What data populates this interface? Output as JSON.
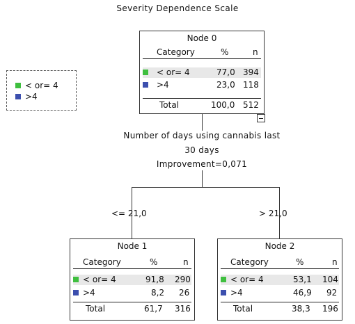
{
  "title": "Severity Dependence Scale",
  "legend": [
    {
      "label": "< or= 4",
      "color": "#3fbf3f"
    },
    {
      "label": ">4",
      "color": "#3c4fae"
    }
  ],
  "headers": {
    "category": "Category",
    "percent": "%",
    "n": "n"
  },
  "root": {
    "title": "Node 0",
    "rows": [
      {
        "category": "< or= 4",
        "percent": "77,0",
        "n": "394"
      },
      {
        "category": ">4",
        "percent": "23,0",
        "n": "118"
      }
    ],
    "total": {
      "label": "Total",
      "percent": "100,0",
      "n": "512"
    }
  },
  "split": {
    "variable_line1": "Number of days using cannabis last",
    "variable_line2": "30 days",
    "improvement": "Improvement=0,071"
  },
  "branches": {
    "left": "<= 21,0",
    "right": "> 21,0"
  },
  "node1": {
    "title": "Node 1",
    "rows": [
      {
        "category": "< or= 4",
        "percent": "91,8",
        "n": "290"
      },
      {
        "category": ">4",
        "percent": "8,2",
        "n": "26"
      }
    ],
    "total": {
      "label": "Total",
      "percent": "61,7",
      "n": "316"
    }
  },
  "node2": {
    "title": "Node 2",
    "rows": [
      {
        "category": "< or= 4",
        "percent": "53,1",
        "n": "104"
      },
      {
        "category": ">4",
        "percent": "46,9",
        "n": "92"
      }
    ],
    "total": {
      "label": "Total",
      "percent": "38,3",
      "n": "196"
    }
  }
}
